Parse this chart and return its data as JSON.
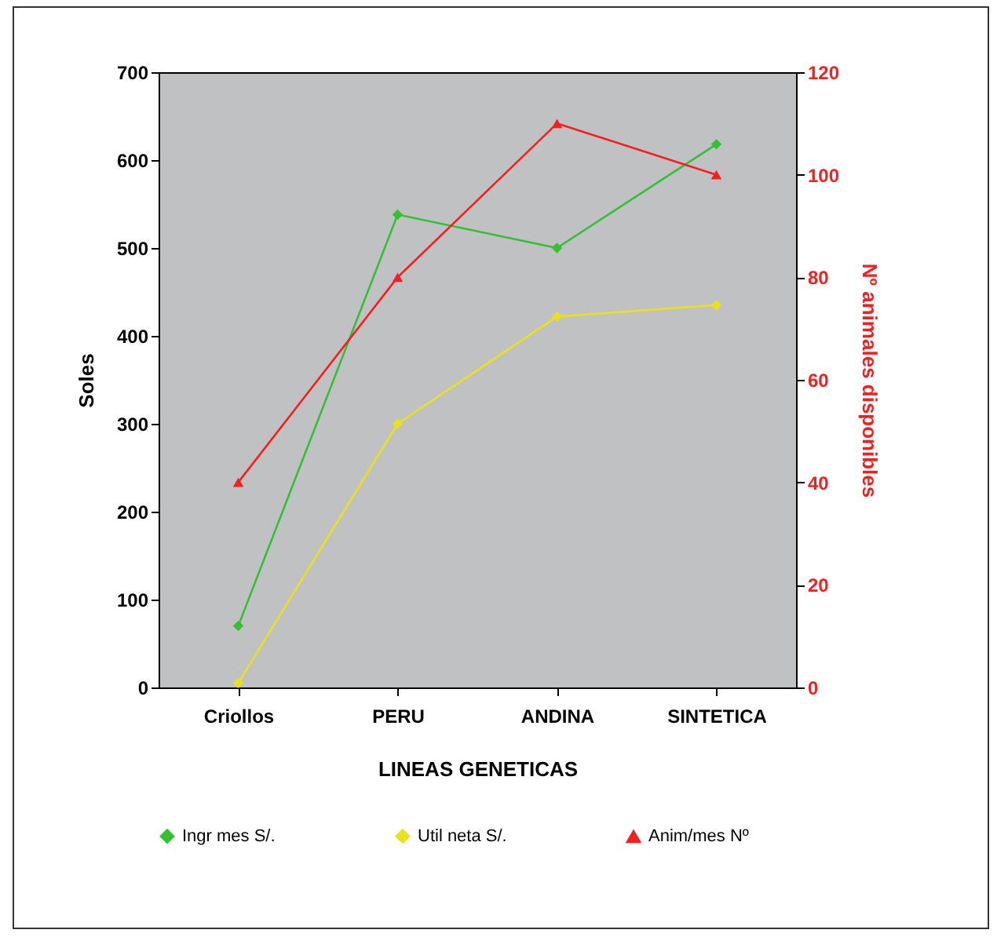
{
  "chart_data": {
    "type": "line",
    "xlabel": "LINEAS GENETICAS",
    "ylabel": "Soles",
    "y2label": "Nº animales disponibles",
    "categories": [
      "Criollos",
      "PERU",
      "ANDINA",
      "SINTETICA"
    ],
    "series": [
      {
        "name": "Ingr mes  S/.",
        "color": "#33c133",
        "marker": "diamond",
        "values": [
          70,
          538,
          500,
          618
        ]
      },
      {
        "name": "Util neta  S/.",
        "color": "#e8e21c",
        "marker": "diamond",
        "values": [
          5,
          300,
          422,
          435
        ]
      },
      {
        "name": "Anim/mes  Nº",
        "color": "#f42020",
        "marker": "triangle",
        "axis": "y2",
        "values": [
          40,
          80,
          110,
          100
        ]
      }
    ],
    "ylim": [
      0,
      700
    ],
    "yticks": [
      0,
      100,
      200,
      300,
      400,
      500,
      600,
      700
    ],
    "y2lim": [
      0,
      120
    ],
    "y2ticks": [
      0,
      20,
      40,
      60,
      80,
      100,
      120
    ],
    "legend": "bottom",
    "grid": false
  }
}
